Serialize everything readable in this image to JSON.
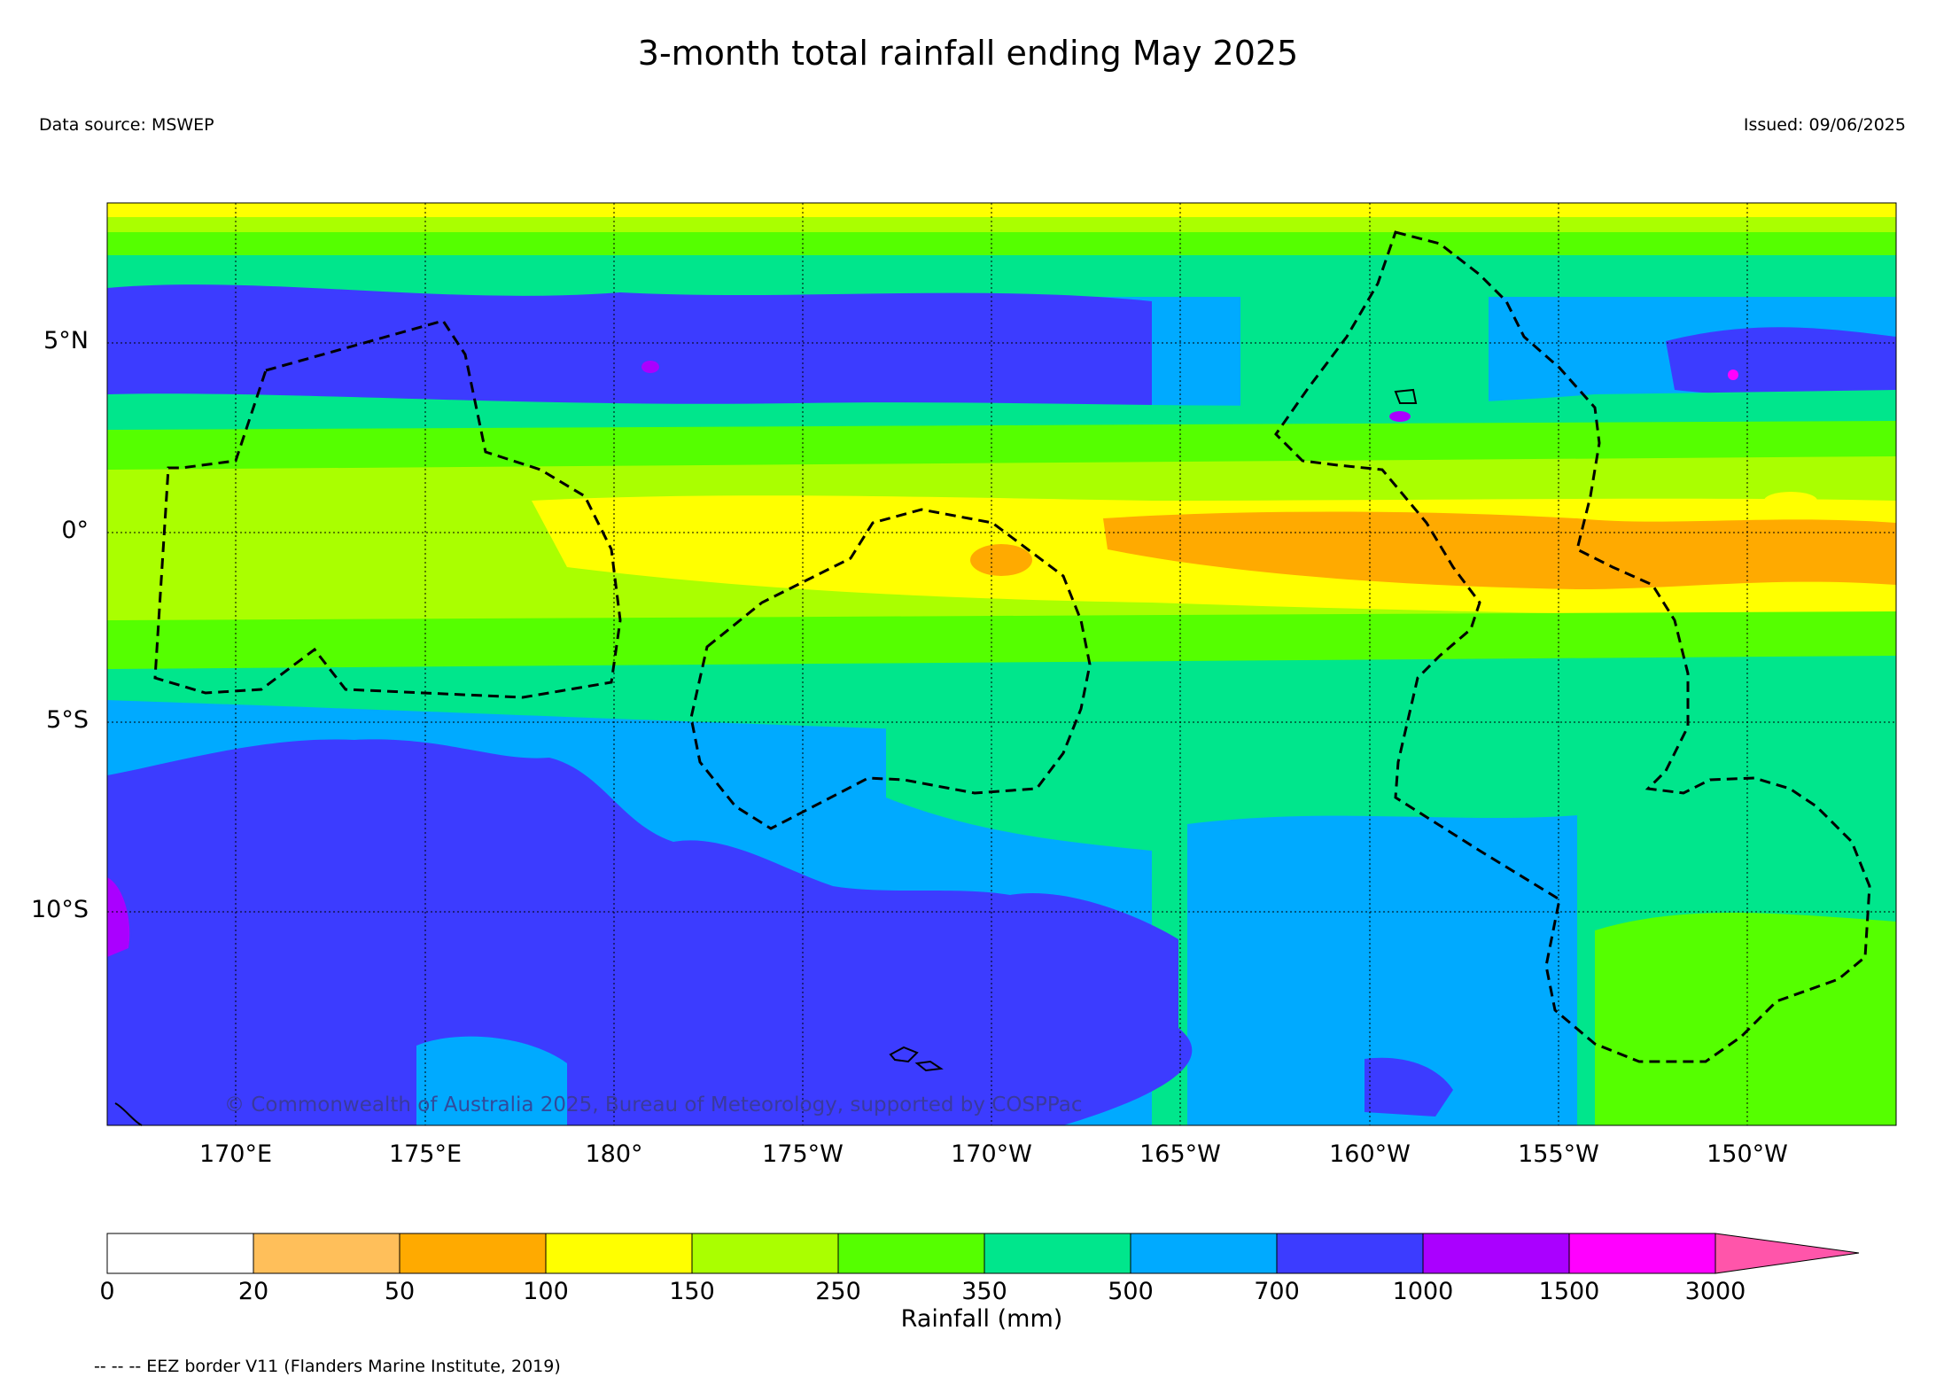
{
  "title": "3-month total rainfall ending May 2025",
  "data_source": "Data source: MSWEP",
  "issued": "Issued: 09/06/2025",
  "copyright": "© Commonwealth of Australia 2025, Bureau of Meteorology, supported by COSPPac",
  "eez_note": "-- -- -- EEZ border V11 (Flanders Marine Institute, 2019)",
  "axes": {
    "lat_labels": [
      "5°N",
      "0°",
      "5°S",
      "10°S"
    ],
    "lon_labels": [
      "170°E",
      "175°E",
      "180°",
      "175°W",
      "170°W",
      "165°W",
      "160°W",
      "155°W",
      "150°W"
    ]
  },
  "colorbar": {
    "title": "Rainfall (mm)",
    "ticks": [
      "0",
      "20",
      "50",
      "100",
      "150",
      "250",
      "350",
      "500",
      "700",
      "1000",
      "1500",
      "3000"
    ],
    "colors": [
      "#ffffff",
      "#ffbf5a",
      "#ffaa00",
      "#ffff00",
      "#aaff00",
      "#55ff00",
      "#00e68c",
      "#00aaff",
      "#3c3cff",
      "#aa00ff",
      "#ff00ff",
      "#ff55aa"
    ]
  },
  "colors": {
    "land_outline": "#000000",
    "eez_line": "#000000"
  }
}
